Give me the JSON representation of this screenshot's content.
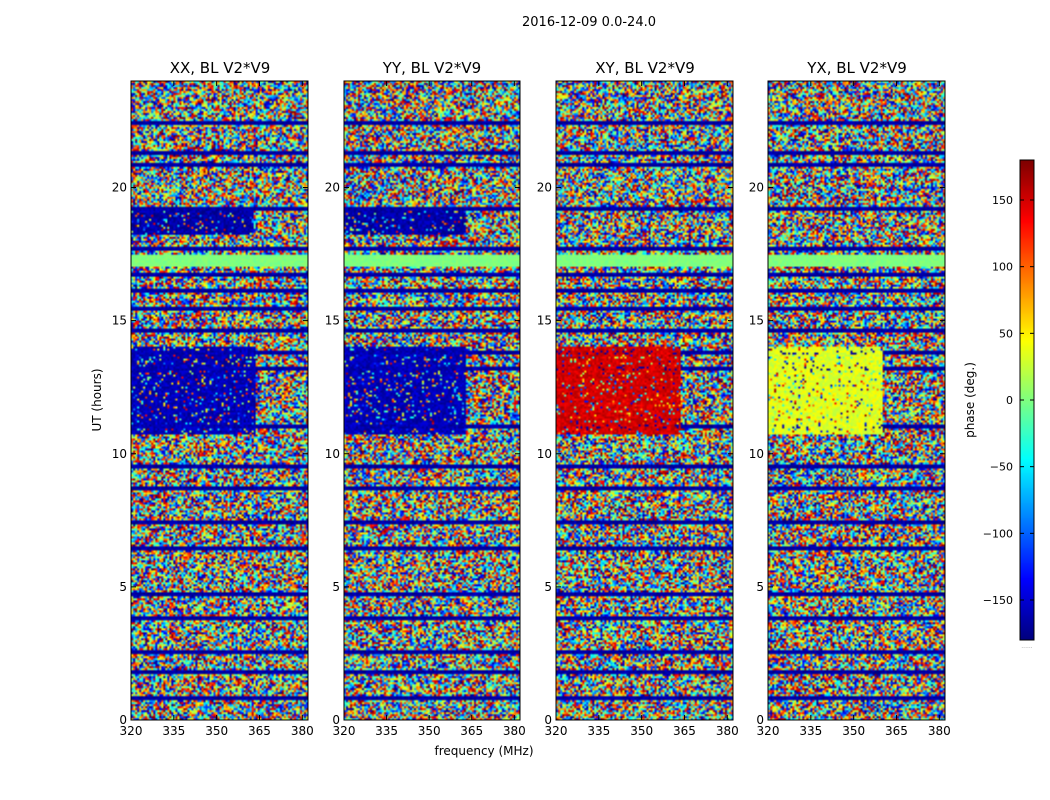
{
  "figure": {
    "suptitle": "2016-12-09 0.0-24.0"
  },
  "chart_data": {
    "type": "heatmap",
    "suptitle": "2016-12-09 0.0-24.0",
    "xlabel": "frequency (MHz)",
    "ylabel": "UT (hours)",
    "xlim": [
      320,
      382
    ],
    "ylim": [
      0,
      24
    ],
    "x_ticks": [
      320,
      335,
      350,
      365,
      380
    ],
    "y_ticks": [
      0,
      5,
      10,
      15,
      20
    ],
    "colorbar": {
      "label": "phase (deg.)",
      "vmin": -180,
      "vmax": 180,
      "ticks": [
        -150,
        -100,
        -50,
        0,
        50,
        100,
        150
      ],
      "tick_labels": [
        "−150",
        "−100",
        "−50",
        "0",
        "50",
        "100",
        "150"
      ],
      "colormap": "jet",
      "footer": "......"
    },
    "panels": [
      {
        "title": "XX, BL V2*V9",
        "polarization": "XX"
      },
      {
        "title": "YY, BL V2*V9",
        "polarization": "YY"
      },
      {
        "title": "XY, BL V2*V9",
        "polarization": "XY"
      },
      {
        "title": "YX, BL V2*V9",
        "polarization": "YX"
      }
    ],
    "features": {
      "flat_band_hours": [
        17.1,
        17.5
      ],
      "flat_band_phase_deg": 0,
      "low_phase_blocks": [
        {
          "panel": "XX",
          "hours": [
            10.8,
            14.0
          ],
          "freq_end_mhz": 364,
          "phase_deg": -160
        },
        {
          "panel": "YY",
          "hours": [
            10.8,
            14.0
          ],
          "freq_end_mhz": 363,
          "phase_deg": -160
        },
        {
          "panel": "XX",
          "hours": [
            18.3,
            19.2
          ],
          "freq_end_mhz": 363,
          "phase_deg": -165
        },
        {
          "panel": "YY",
          "hours": [
            18.3,
            19.2
          ],
          "freq_end_mhz": 363,
          "phase_deg": -165
        }
      ],
      "high_phase_blocks": [
        {
          "panel": "XY",
          "hours": [
            10.8,
            14.0
          ],
          "freq_end_mhz": 364,
          "phase_deg": 150
        },
        {
          "panel": "YX",
          "hours": [
            10.8,
            14.0
          ],
          "freq_end_mhz": 360,
          "phase_deg": 35
        }
      ],
      "dark_stripe_hours": [
        0.9,
        1.9,
        2.6,
        3.9,
        4.8,
        6.5,
        7.5,
        8.8,
        9.6,
        11.1,
        13.3,
        13.9,
        14.7,
        15.5,
        16.2,
        16.8,
        17.8,
        19.3,
        20.9,
        21.4,
        22.5
      ]
    }
  }
}
